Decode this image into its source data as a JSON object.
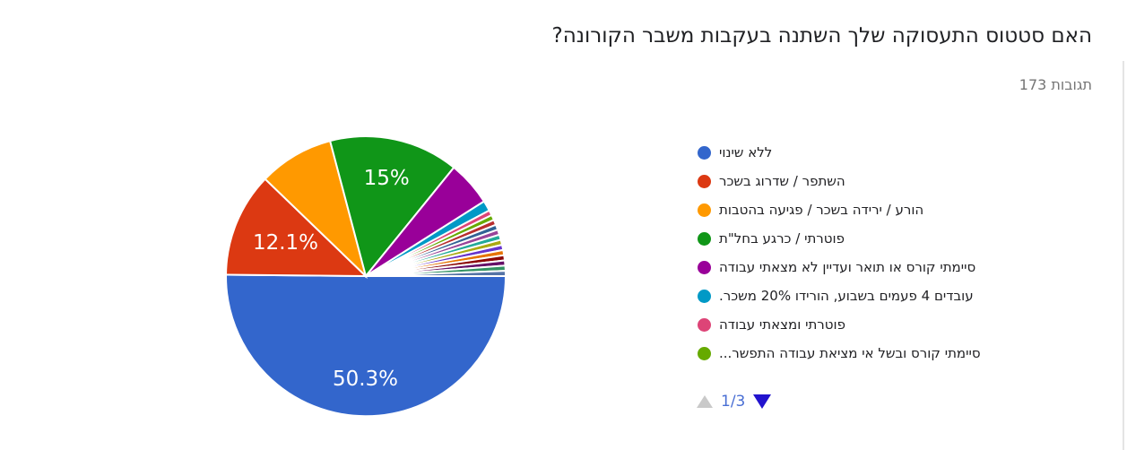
{
  "header": {
    "title": "האם סטטוס התעסוקה שלך השתנה בעקבות משבר הקורונה?",
    "responses_count": "173 תגובות"
  },
  "chart_data": {
    "type": "pie",
    "title": "האם סטטוס התעסוקה שלך השתנה בעקבות משבר הקורונה?",
    "subtitle": "173 תגובות",
    "total_responses": 173,
    "legend_position": "right",
    "start_angle": "east, clockwise, largest slice fills bottom half",
    "slices": [
      {
        "label": "ללא שינוי",
        "percent": 50.3,
        "display_label": "50.3%",
        "color": "#3366CC"
      },
      {
        "label": "השתפר / שדרוג בשכר",
        "percent": 12.1,
        "display_label": "12.1%",
        "color": "#DC3912"
      },
      {
        "label": "הורע / ירידה בשכר / פגיעה בהטבות",
        "percent": 8.7,
        "display_label": "",
        "color": "#FF9900"
      },
      {
        "label": "פוטרתי / כרגע בחל\"ת",
        "percent": 15,
        "display_label": "15%",
        "color": "#109618"
      },
      {
        "label": "סיימתי קורס או תואר ועדיין לא מצאתי עבודה",
        "percent": 5.2,
        "display_label": "",
        "color": "#990099"
      },
      {
        "label": "עובדים 4 פעמים בשבוע, הורידו 20% משכר.",
        "percent": 1.2,
        "display_label": "",
        "color": "#0099C6"
      },
      {
        "label": "פוטרתי ומצאתי עבודה",
        "percent": 0.6,
        "display_label": "",
        "color": "#DD4477"
      },
      {
        "label": "סיימתי קורס ובשל אי מציאת עבודה התפשר...",
        "percent": 0.6,
        "display_label": "",
        "color": "#66AA00"
      },
      {
        "label": "",
        "percent": 0.6,
        "display_label": "",
        "color": "#B82E2E"
      },
      {
        "label": "",
        "percent": 0.6,
        "display_label": "",
        "color": "#316395"
      },
      {
        "label": "",
        "percent": 0.6,
        "display_label": "",
        "color": "#994499"
      },
      {
        "label": "",
        "percent": 0.6,
        "display_label": "",
        "color": "#22AA99"
      },
      {
        "label": "",
        "percent": 0.6,
        "display_label": "",
        "color": "#AAAA11"
      },
      {
        "label": "",
        "percent": 0.6,
        "display_label": "",
        "color": "#6633CC"
      },
      {
        "label": "",
        "percent": 0.6,
        "display_label": "",
        "color": "#E67300"
      },
      {
        "label": "",
        "percent": 0.6,
        "display_label": "",
        "color": "#8B0707"
      },
      {
        "label": "",
        "percent": 0.6,
        "display_label": "",
        "color": "#651067"
      },
      {
        "label": "",
        "percent": 0.6,
        "display_label": "",
        "color": "#329262"
      },
      {
        "label": "",
        "percent": 0.6,
        "display_label": "",
        "color": "#5574A6"
      }
    ]
  },
  "legend": {
    "visible_items": 8
  },
  "pagination": {
    "label": "1/3",
    "up_arrow_color": "#C9C9C9",
    "down_arrow_color": "#2213CE",
    "label_color": "#4A6FD4"
  }
}
